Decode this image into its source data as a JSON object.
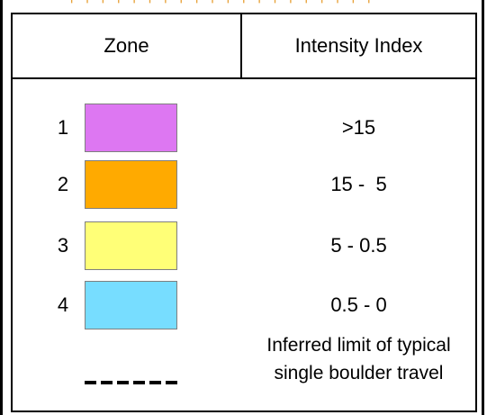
{
  "legend": {
    "header": {
      "zone": "Zone",
      "intensity": "Intensity Index"
    },
    "zones": [
      {
        "number": "1",
        "range": ">15",
        "color": "#dd77f2"
      },
      {
        "number": "2",
        "range": "15 -  5",
        "color": "#ffaa00"
      },
      {
        "number": "3",
        "range": "5 - 0.5",
        "color": "#ffff77"
      },
      {
        "number": "4",
        "range": "0.5 - 0",
        "color": "#77ddff"
      }
    ],
    "boulder_limit": {
      "line1": "Inferred limit of typical",
      "line2": "single boulder travel"
    }
  }
}
